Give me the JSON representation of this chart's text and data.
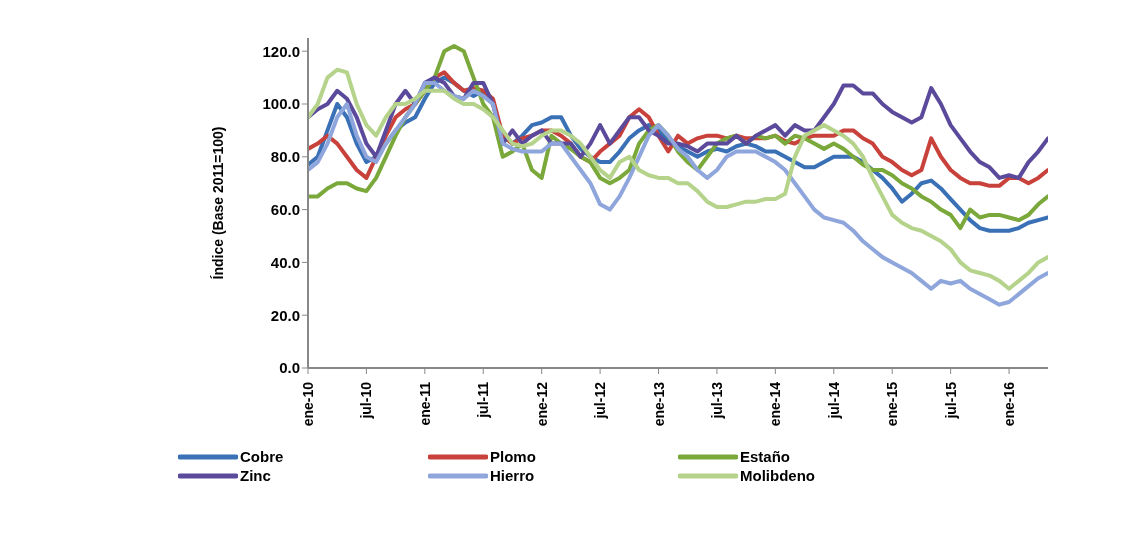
{
  "chart_data": {
    "type": "line",
    "ylabel": "Índice (Base 2011=100)",
    "categories": [
      "ene-10",
      null,
      null,
      null,
      null,
      null,
      "jul-10",
      null,
      null,
      null,
      null,
      null,
      "ene-11",
      null,
      null,
      null,
      null,
      null,
      "jul-11",
      null,
      null,
      null,
      null,
      null,
      "ene-12",
      null,
      null,
      null,
      null,
      null,
      "jul-12",
      null,
      null,
      null,
      null,
      null,
      "ene-13",
      null,
      null,
      null,
      null,
      null,
      "jul-13",
      null,
      null,
      null,
      null,
      null,
      "ene-14",
      null,
      null,
      null,
      null,
      null,
      "jul-14",
      null,
      null,
      null,
      null,
      null,
      "ene-15",
      null,
      null,
      null,
      null,
      null,
      "jul-15",
      null,
      null,
      null,
      null,
      null,
      "ene-16",
      null,
      null,
      null,
      null
    ],
    "series": [
      {
        "name": "Cobre",
        "color": "#3a70b5",
        "values": [
          77,
          80,
          90,
          100,
          95,
          85,
          78,
          80,
          85,
          90,
          93,
          95,
          102,
          108,
          110,
          108,
          105,
          103,
          105,
          100,
          88,
          85,
          88,
          92,
          93,
          95,
          95,
          88,
          83,
          80,
          78,
          78,
          82,
          87,
          90,
          92,
          90,
          86,
          84,
          82,
          80,
          82,
          83,
          82,
          84,
          85,
          84,
          82,
          82,
          80,
          78,
          76,
          76,
          78,
          80,
          80,
          80,
          78,
          75,
          72,
          68,
          63,
          66,
          70,
          71,
          68,
          64,
          60,
          56,
          53,
          52,
          52,
          52,
          53,
          55,
          56,
          57
        ]
      },
      {
        "name": "Plomo",
        "color": "#c8413b",
        "values": [
          83,
          85,
          88,
          85,
          80,
          75,
          72,
          80,
          88,
          95,
          98,
          100,
          105,
          110,
          112,
          108,
          105,
          106,
          105,
          102,
          88,
          85,
          87,
          88,
          90,
          90,
          88,
          85,
          80,
          78,
          82,
          85,
          88,
          95,
          98,
          95,
          88,
          82,
          88,
          85,
          87,
          88,
          88,
          87,
          88,
          87,
          87,
          87,
          88,
          86,
          85,
          87,
          88,
          88,
          88,
          90,
          90,
          87,
          85,
          80,
          78,
          75,
          73,
          75,
          87,
          80,
          75,
          72,
          70,
          70,
          69,
          69,
          72,
          72,
          70,
          72,
          75
        ]
      },
      {
        "name": "Estaño",
        "color": "#7aa83a",
        "values": [
          65,
          65,
          68,
          70,
          70,
          68,
          67,
          72,
          80,
          88,
          95,
          100,
          105,
          110,
          120,
          122,
          120,
          110,
          100,
          95,
          80,
          82,
          85,
          75,
          72,
          88,
          85,
          83,
          80,
          78,
          72,
          70,
          72,
          75,
          85,
          90,
          92,
          88,
          82,
          78,
          75,
          80,
          85,
          87,
          88,
          85,
          88,
          87,
          88,
          85,
          88,
          87,
          85,
          83,
          85,
          83,
          80,
          77,
          75,
          75,
          73,
          70,
          68,
          65,
          63,
          60,
          58,
          53,
          60,
          57,
          58,
          58,
          57,
          56,
          58,
          62,
          65
        ]
      },
      {
        "name": "Zinc",
        "color": "#5b4a9b",
        "values": [
          95,
          98,
          100,
          105,
          102,
          95,
          85,
          80,
          90,
          100,
          105,
          100,
          108,
          110,
          108,
          103,
          102,
          108,
          108,
          100,
          85,
          90,
          85,
          88,
          90,
          85,
          85,
          85,
          80,
          85,
          92,
          85,
          90,
          95,
          95,
          90,
          88,
          85,
          85,
          84,
          82,
          85,
          85,
          85,
          88,
          85,
          88,
          90,
          92,
          88,
          92,
          90,
          90,
          95,
          100,
          107,
          107,
          104,
          104,
          100,
          97,
          95,
          93,
          95,
          106,
          100,
          92,
          87,
          82,
          78,
          76,
          72,
          73,
          72,
          78,
          82,
          87
        ]
      },
      {
        "name": "Hierro",
        "color": "#8fa6dc",
        "values": [
          75,
          78,
          85,
          95,
          100,
          88,
          80,
          78,
          85,
          90,
          95,
          100,
          108,
          108,
          105,
          103,
          102,
          105,
          103,
          100,
          85,
          83,
          82,
          82,
          82,
          85,
          85,
          80,
          75,
          70,
          62,
          60,
          65,
          72,
          80,
          88,
          92,
          88,
          83,
          80,
          75,
          72,
          75,
          80,
          82,
          82,
          82,
          80,
          78,
          75,
          70,
          65,
          60,
          57,
          56,
          55,
          52,
          48,
          45,
          42,
          40,
          38,
          36,
          33,
          30,
          33,
          32,
          33,
          30,
          28,
          26,
          24,
          25,
          28,
          31,
          34,
          36
        ]
      },
      {
        "name": "Molibdeno",
        "color": "#b5d38a",
        "values": [
          95,
          100,
          110,
          113,
          112,
          100,
          92,
          88,
          95,
          100,
          100,
          102,
          105,
          105,
          105,
          102,
          100,
          100,
          98,
          95,
          90,
          85,
          84,
          85,
          88,
          90,
          90,
          88,
          85,
          80,
          75,
          72,
          78,
          80,
          75,
          73,
          72,
          72,
          70,
          70,
          67,
          63,
          61,
          61,
          62,
          63,
          63,
          64,
          64,
          66,
          80,
          88,
          90,
          92,
          90,
          88,
          85,
          80,
          72,
          65,
          58,
          55,
          53,
          52,
          50,
          48,
          45,
          40,
          37,
          36,
          35,
          33,
          30,
          33,
          36,
          40,
          42
        ]
      }
    ],
    "ylim": [
      0,
      125
    ],
    "yticks": [
      {
        "value": 0,
        "label": "0.0"
      },
      {
        "value": 20,
        "label": "20.0"
      },
      {
        "value": 40,
        "label": "40.0"
      },
      {
        "value": 60,
        "label": "60.0"
      },
      {
        "value": 80,
        "label": "80.0"
      },
      {
        "value": 100,
        "label": "100.0"
      },
      {
        "value": 120,
        "label": "120.0"
      }
    ],
    "legend": "bottom",
    "marker": "none",
    "line_style": "solid"
  }
}
